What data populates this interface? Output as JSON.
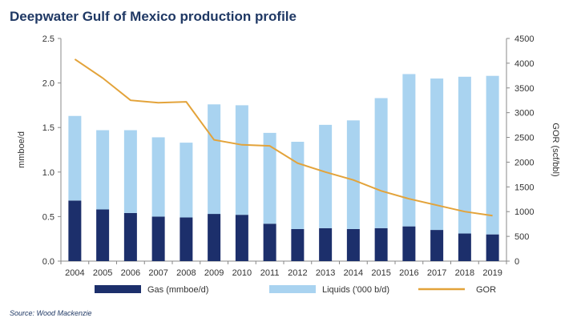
{
  "chart_data": {
    "type": "bar",
    "title": "Deepwater Gulf of Mexico production profile",
    "categories": [
      "2004",
      "2005",
      "2006",
      "2007",
      "2008",
      "2009",
      "2010",
      "2011",
      "2012",
      "2013",
      "2014",
      "2015",
      "2016",
      "2017",
      "2018",
      "2019"
    ],
    "stacked": true,
    "series": [
      {
        "name": "Gas (mmboe/d)",
        "type": "bar",
        "axis": "left",
        "color": "#1c2f6b",
        "values": [
          0.68,
          0.58,
          0.54,
          0.5,
          0.49,
          0.53,
          0.52,
          0.42,
          0.36,
          0.37,
          0.36,
          0.37,
          0.39,
          0.35,
          0.31,
          0.3
        ]
      },
      {
        "name": "Liquids ('000 b/d)",
        "type": "bar",
        "axis": "left",
        "color": "#a9d3f0",
        "values": [
          0.95,
          0.89,
          0.93,
          0.89,
          0.84,
          1.23,
          1.23,
          1.02,
          0.98,
          1.16,
          1.22,
          1.46,
          1.71,
          1.7,
          1.76,
          1.78
        ]
      },
      {
        "name": "GOR",
        "type": "line",
        "axis": "right",
        "color": "#e3a33a",
        "values": [
          4080,
          3700,
          3250,
          3200,
          3220,
          2450,
          2350,
          2330,
          1980,
          1800,
          1640,
          1420,
          1260,
          1130,
          1000,
          920
        ]
      }
    ],
    "ylabel": "mmboe/d",
    "y2label": "GOR (scf/bbl)",
    "ylim": [
      0,
      2.5
    ],
    "y2lim": [
      0,
      4500
    ],
    "yticks": [
      "0.0",
      "0.5",
      "1.0",
      "1.5",
      "2.0",
      "2.5"
    ],
    "y2ticks": [
      "0",
      "500",
      "1000",
      "1500",
      "2000",
      "2500",
      "3000",
      "3500",
      "4000",
      "4500"
    ],
    "legend_position": "bottom",
    "grid": false
  },
  "source": "Source: Wood Mackenzie"
}
